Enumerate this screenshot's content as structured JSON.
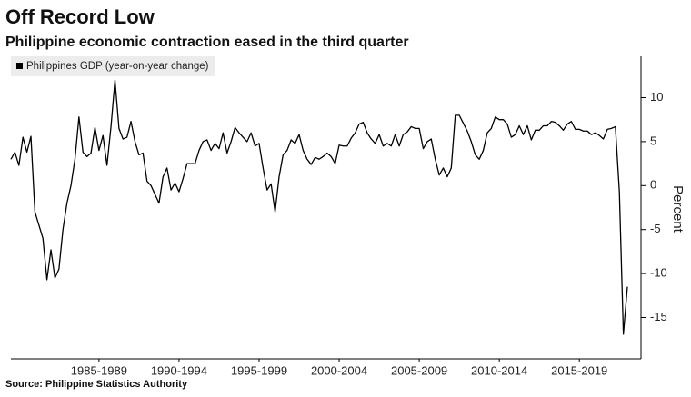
{
  "chart_data": {
    "type": "line",
    "title": "Off Record Low",
    "subtitle": "Philippine economic contraction eased in the third quarter",
    "y_label": "Percent",
    "source": "Source: Philippine Statistics Authority",
    "yaxis_position": "right",
    "legend_position": "upper left",
    "grid": false,
    "xlim": [
      1982,
      2021.35
    ],
    "xticks": [
      {
        "value": 1987.5,
        "label": "1985-1989"
      },
      {
        "value": 1992.5,
        "label": "1990-1994"
      },
      {
        "value": 1997.5,
        "label": "1995-1999"
      },
      {
        "value": 2002.5,
        "label": "2000-2004"
      },
      {
        "value": 2007.5,
        "label": "2005-2009"
      },
      {
        "value": 2012.5,
        "label": "2010-2014"
      },
      {
        "value": 2017.5,
        "label": "2015-2019"
      }
    ],
    "ylim": [
      -19.7,
      14.7
    ],
    "yticks": [
      -15,
      -10,
      -5,
      0,
      5,
      10
    ],
    "x": [
      1982,
      1982.25,
      1982.5,
      1982.75,
      1983,
      1983.25,
      1983.5,
      1983.75,
      1984,
      1984.25,
      1984.5,
      1984.75,
      1985,
      1985.25,
      1985.5,
      1985.75,
      1986,
      1986.25,
      1986.5,
      1986.75,
      1987,
      1987.25,
      1987.5,
      1987.75,
      1988,
      1988.25,
      1988.5,
      1988.75,
      1989,
      1989.25,
      1989.5,
      1989.75,
      1990,
      1990.25,
      1990.5,
      1990.75,
      1991,
      1991.25,
      1991.5,
      1991.75,
      1992,
      1992.25,
      1992.5,
      1992.75,
      1993,
      1993.25,
      1993.5,
      1993.75,
      1994,
      1994.25,
      1994.5,
      1994.75,
      1995,
      1995.25,
      1995.5,
      1995.75,
      1996,
      1996.25,
      1996.5,
      1996.75,
      1997,
      1997.25,
      1997.5,
      1997.75,
      1998,
      1998.25,
      1998.5,
      1998.75,
      1999,
      1999.25,
      1999.5,
      1999.75,
      2000,
      2000.25,
      2000.5,
      2000.75,
      2001,
      2001.25,
      2001.5,
      2001.75,
      2002,
      2002.25,
      2002.5,
      2002.75,
      2003,
      2003.25,
      2003.5,
      2003.75,
      2004,
      2004.25,
      2004.5,
      2004.75,
      2005,
      2005.25,
      2005.5,
      2005.75,
      2006,
      2006.25,
      2006.5,
      2006.75,
      2007,
      2007.25,
      2007.5,
      2007.75,
      2008,
      2008.25,
      2008.5,
      2008.75,
      2009,
      2009.25,
      2009.5,
      2009.75,
      2010,
      2010.25,
      2010.5,
      2010.75,
      2011,
      2011.25,
      2011.5,
      2011.75,
      2012,
      2012.25,
      2012.5,
      2012.75,
      2013,
      2013.25,
      2013.5,
      2013.75,
      2014,
      2014.25,
      2014.5,
      2014.75,
      2015,
      2015.25,
      2015.5,
      2015.75,
      2016,
      2016.25,
      2016.5,
      2016.75,
      2017,
      2017.25,
      2017.5,
      2017.75,
      2018,
      2018.25,
      2018.5,
      2018.75,
      2019,
      2019.25,
      2019.5,
      2019.75,
      2020,
      2020.25,
      2020.5
    ],
    "series": [
      {
        "name": "Philippines GDP (year-on-year change)",
        "color": "#000000",
        "values": [
          3,
          3.8,
          2.3,
          5.5,
          3.8,
          5.6,
          -3,
          -4.5,
          -6,
          -10.7,
          -7.3,
          -10.5,
          -9.5,
          -5,
          -2,
          0,
          3,
          7.8,
          3.8,
          3.3,
          3.7,
          6.6,
          4,
          5.7,
          2.3,
          6.7,
          12,
          6.5,
          5.3,
          5.5,
          7.3,
          5,
          3.5,
          3.7,
          0.5,
          0,
          -1,
          -2,
          1,
          2,
          -0.5,
          0.3,
          -0.7,
          0.8,
          2.5,
          2.5,
          2.5,
          4,
          5,
          5.2,
          4,
          4.8,
          4.2,
          6,
          3.7,
          5,
          6.6,
          6,
          5.5,
          5,
          6,
          4.5,
          4.8,
          2,
          -0.5,
          0.2,
          -3,
          1,
          3.5,
          4,
          5.2,
          4.8,
          5.8,
          4,
          3,
          2.4,
          3.2,
          3,
          3.3,
          3.7,
          3.3,
          2.5,
          4.6,
          4.5,
          4.5,
          5.4,
          6,
          7,
          7.2,
          6,
          5.3,
          4.8,
          5.8,
          4.5,
          4.8,
          4.5,
          5.8,
          4.5,
          5.8,
          6.1,
          6.7,
          6.5,
          6.5,
          4.2,
          5,
          5.3,
          3,
          1.2,
          2,
          1,
          2,
          8,
          8,
          7.1,
          6.2,
          5,
          3.5,
          3,
          4,
          6,
          6.5,
          7.8,
          7.5,
          7.5,
          7,
          5.5,
          5.8,
          6.8,
          5.8,
          6.8,
          5.2,
          6.3,
          6.3,
          6.8,
          6.8,
          7.3,
          7.2,
          6.8,
          6.3,
          7,
          7.3,
          6.4,
          6.4,
          6.2,
          6.2,
          5.8,
          6,
          5.7,
          5.3,
          6.4,
          6.5,
          6.7,
          -0.7,
          -16.9,
          -11.5
        ]
      }
    ]
  }
}
